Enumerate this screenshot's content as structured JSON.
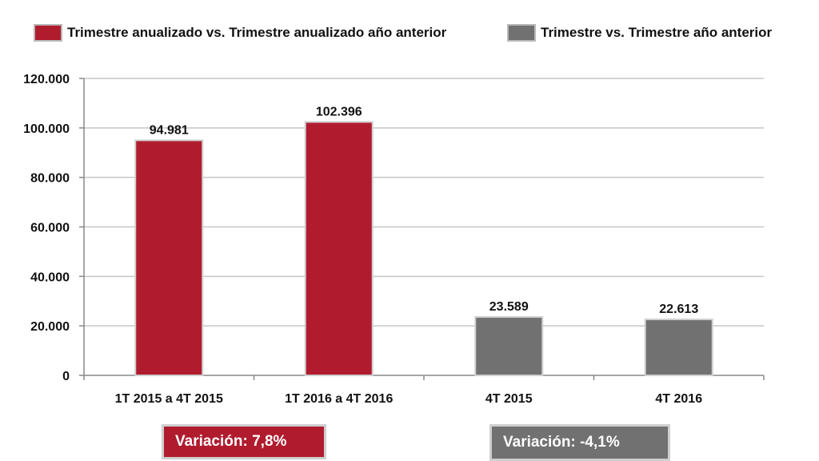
{
  "legend": [
    {
      "label": "Trimestre anualizado vs. Trimestre anualizado año anterior",
      "color": "#b01c2e"
    },
    {
      "label": "Trimestre vs. Trimestre año anterior",
      "color": "#717171"
    }
  ],
  "chart_data": {
    "type": "bar",
    "categories": [
      "1T 2015 a 4T 2015",
      "1T 2016 a 4T 2016",
      "4T 2015",
      "4T 2016"
    ],
    "values": [
      94981,
      102396,
      23589,
      22613
    ],
    "value_labels": [
      "94.981",
      "102.396",
      "23.589",
      "22.613"
    ],
    "bar_colors": [
      "#b01c2e",
      "#b01c2e",
      "#717171",
      "#717171"
    ],
    "series": [
      {
        "name": "Trimestre anualizado vs. Trimestre anualizado año anterior",
        "categories": [
          "1T 2015 a 4T 2015",
          "1T 2016 a 4T 2016"
        ]
      },
      {
        "name": "Trimestre vs. Trimestre año anterior",
        "categories": [
          "4T 2015",
          "4T 2016"
        ]
      }
    ],
    "yticks": [
      0,
      20000,
      40000,
      60000,
      80000,
      100000,
      120000
    ],
    "ytick_labels": [
      "0",
      "20.000",
      "40.000",
      "60.000",
      "80.000",
      "100.000",
      "120.000"
    ],
    "ylim": [
      0,
      120000
    ],
    "grid": true,
    "legend_position": "top"
  },
  "variations": [
    {
      "label": "Variación:  7,8%",
      "color": "#b01c2e"
    },
    {
      "label": "Variación: -4,1%",
      "color": "#717171"
    }
  ]
}
